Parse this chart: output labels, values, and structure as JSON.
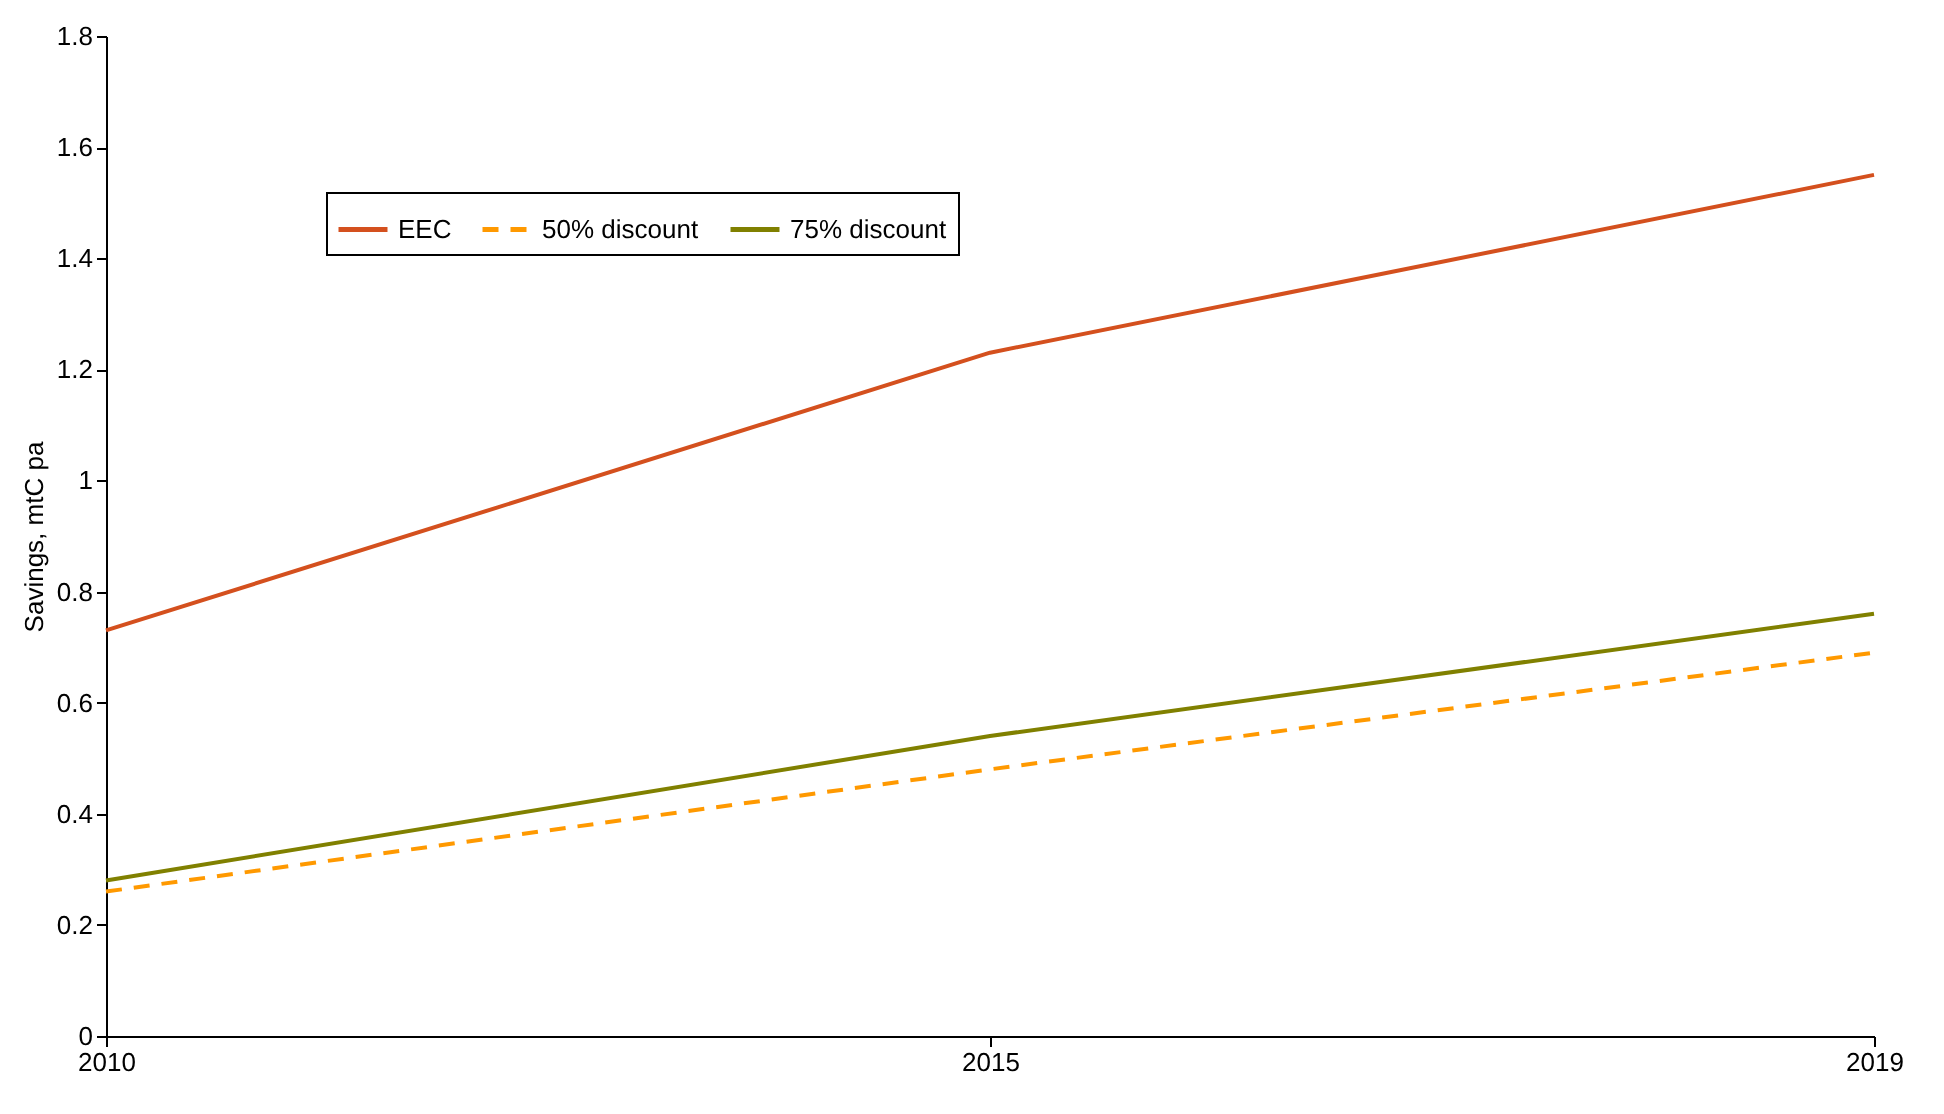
{
  "chart_data": {
    "type": "line",
    "ylabel": "Savings, mtC pa",
    "categories": [
      "2010",
      "2015",
      "2019"
    ],
    "series": [
      {
        "name": "EEC",
        "color": "#d4501e",
        "line_style": "solid",
        "values": [
          0.73,
          1.23,
          1.55
        ]
      },
      {
        "name": "50% discount",
        "color": "#ff9900",
        "line_style": "dashed",
        "values": [
          0.26,
          0.48,
          0.69
        ]
      },
      {
        "name": "75% discount",
        "color": "#808000",
        "line_style": "solid",
        "values": [
          0.28,
          0.54,
          0.76
        ]
      }
    ],
    "ylim": [
      0,
      1.8
    ],
    "yticks": [
      0,
      0.2,
      0.4,
      0.6,
      0.8,
      1,
      1.2,
      1.4,
      1.6,
      1.8
    ],
    "grid": false,
    "legend": "top left",
    "marker": "none"
  }
}
